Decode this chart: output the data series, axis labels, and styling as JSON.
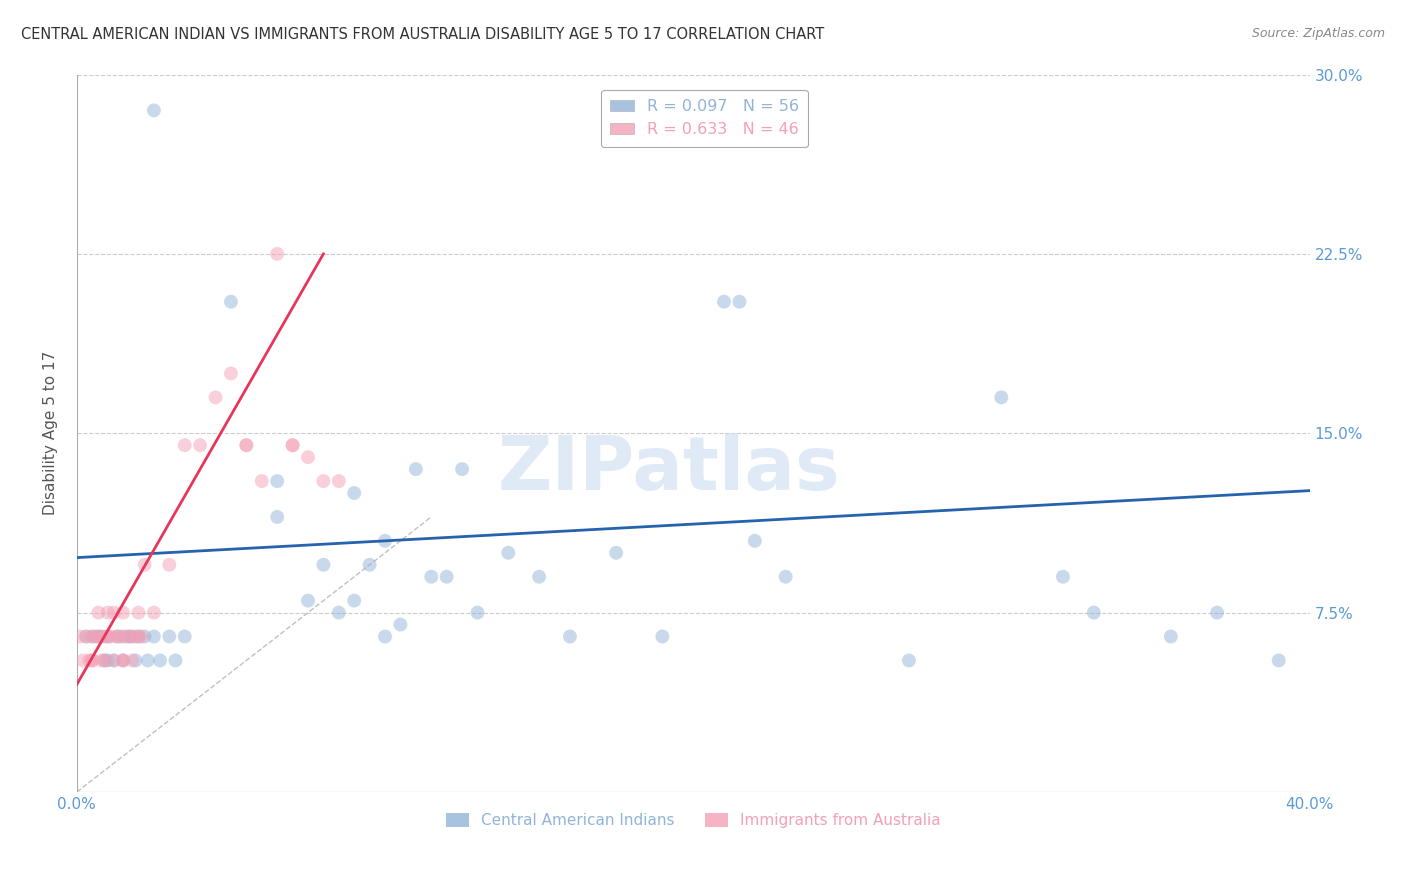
{
  "title": "CENTRAL AMERICAN INDIAN VS IMMIGRANTS FROM AUSTRALIA DISABILITY AGE 5 TO 17 CORRELATION CHART",
  "source": "Source: ZipAtlas.com",
  "ylabel": "Disability Age 5 to 17",
  "xlim": [
    0.0,
    0.4
  ],
  "ylim": [
    0.0,
    0.3
  ],
  "xticks": [
    0.0,
    0.1,
    0.2,
    0.3,
    0.4
  ],
  "xticklabels": [
    "0.0%",
    "",
    "",
    "",
    "40.0%"
  ],
  "yticks": [
    0.0,
    0.075,
    0.15,
    0.225,
    0.3
  ],
  "yticklabels": [
    "",
    "7.5%",
    "15.0%",
    "22.5%",
    "30.0%"
  ],
  "grid_color": "#cccccc",
  "background_color": "#ffffff",
  "legend_r1": "R = 0.097   N = 56",
  "legend_r2": "R = 0.633   N = 46",
  "legend_color1": "#92b4d9",
  "legend_color2": "#f4a0b5",
  "watermark": "ZIPatlas",
  "blue_scatter_x": [
    0.025,
    0.05,
    0.065,
    0.065,
    0.075,
    0.08,
    0.085,
    0.09,
    0.09,
    0.095,
    0.1,
    0.1,
    0.105,
    0.11,
    0.115,
    0.12,
    0.125,
    0.13,
    0.14,
    0.15,
    0.16,
    0.175,
    0.19,
    0.21,
    0.215,
    0.22,
    0.23,
    0.27,
    0.3,
    0.32,
    0.33,
    0.355,
    0.37,
    0.39,
    0.003,
    0.005,
    0.007,
    0.008,
    0.009,
    0.01,
    0.01,
    0.012,
    0.013,
    0.015,
    0.015,
    0.017,
    0.018,
    0.019,
    0.02,
    0.022,
    0.023,
    0.025,
    0.027,
    0.03,
    0.032,
    0.035
  ],
  "blue_scatter_y": [
    0.285,
    0.205,
    0.13,
    0.115,
    0.08,
    0.095,
    0.075,
    0.125,
    0.08,
    0.095,
    0.105,
    0.065,
    0.07,
    0.135,
    0.09,
    0.09,
    0.135,
    0.075,
    0.1,
    0.09,
    0.065,
    0.1,
    0.065,
    0.205,
    0.205,
    0.105,
    0.09,
    0.055,
    0.165,
    0.09,
    0.075,
    0.065,
    0.075,
    0.055,
    0.065,
    0.065,
    0.065,
    0.065,
    0.055,
    0.065,
    0.055,
    0.055,
    0.065,
    0.065,
    0.055,
    0.065,
    0.065,
    0.055,
    0.065,
    0.065,
    0.055,
    0.065,
    0.055,
    0.065,
    0.055,
    0.065
  ],
  "pink_scatter_x": [
    0.001,
    0.002,
    0.003,
    0.004,
    0.005,
    0.005,
    0.006,
    0.007,
    0.008,
    0.009,
    0.01,
    0.01,
    0.011,
    0.012,
    0.013,
    0.014,
    0.015,
    0.015,
    0.016,
    0.017,
    0.018,
    0.019,
    0.02,
    0.02,
    0.021,
    0.022,
    0.025,
    0.03,
    0.035,
    0.04,
    0.045,
    0.05,
    0.055,
    0.06,
    0.065,
    0.07,
    0.075,
    0.08,
    0.085,
    0.005,
    0.007,
    0.009,
    0.012,
    0.015,
    0.055,
    0.07
  ],
  "pink_scatter_y": [
    0.065,
    0.055,
    0.065,
    0.055,
    0.065,
    0.055,
    0.065,
    0.065,
    0.055,
    0.065,
    0.075,
    0.065,
    0.065,
    0.075,
    0.065,
    0.065,
    0.075,
    0.055,
    0.065,
    0.065,
    0.055,
    0.065,
    0.075,
    0.065,
    0.065,
    0.095,
    0.075,
    0.095,
    0.145,
    0.145,
    0.165,
    0.175,
    0.145,
    0.13,
    0.225,
    0.145,
    0.14,
    0.13,
    0.13,
    0.055,
    0.075,
    0.055,
    0.055,
    0.055,
    0.145,
    0.145
  ],
  "blue_line_x": [
    0.0,
    0.4
  ],
  "blue_line_y": [
    0.098,
    0.126
  ],
  "pink_line_x": [
    0.0,
    0.08
  ],
  "pink_line_y": [
    0.045,
    0.225
  ],
  "blue_line_color": "#2563ae",
  "pink_line_color": "#e8365a",
  "diag_line_x": [
    0.0,
    0.115
  ],
  "diag_line_y": [
    0.0,
    0.115
  ],
  "marker_size": 100,
  "marker_alpha": 0.5
}
